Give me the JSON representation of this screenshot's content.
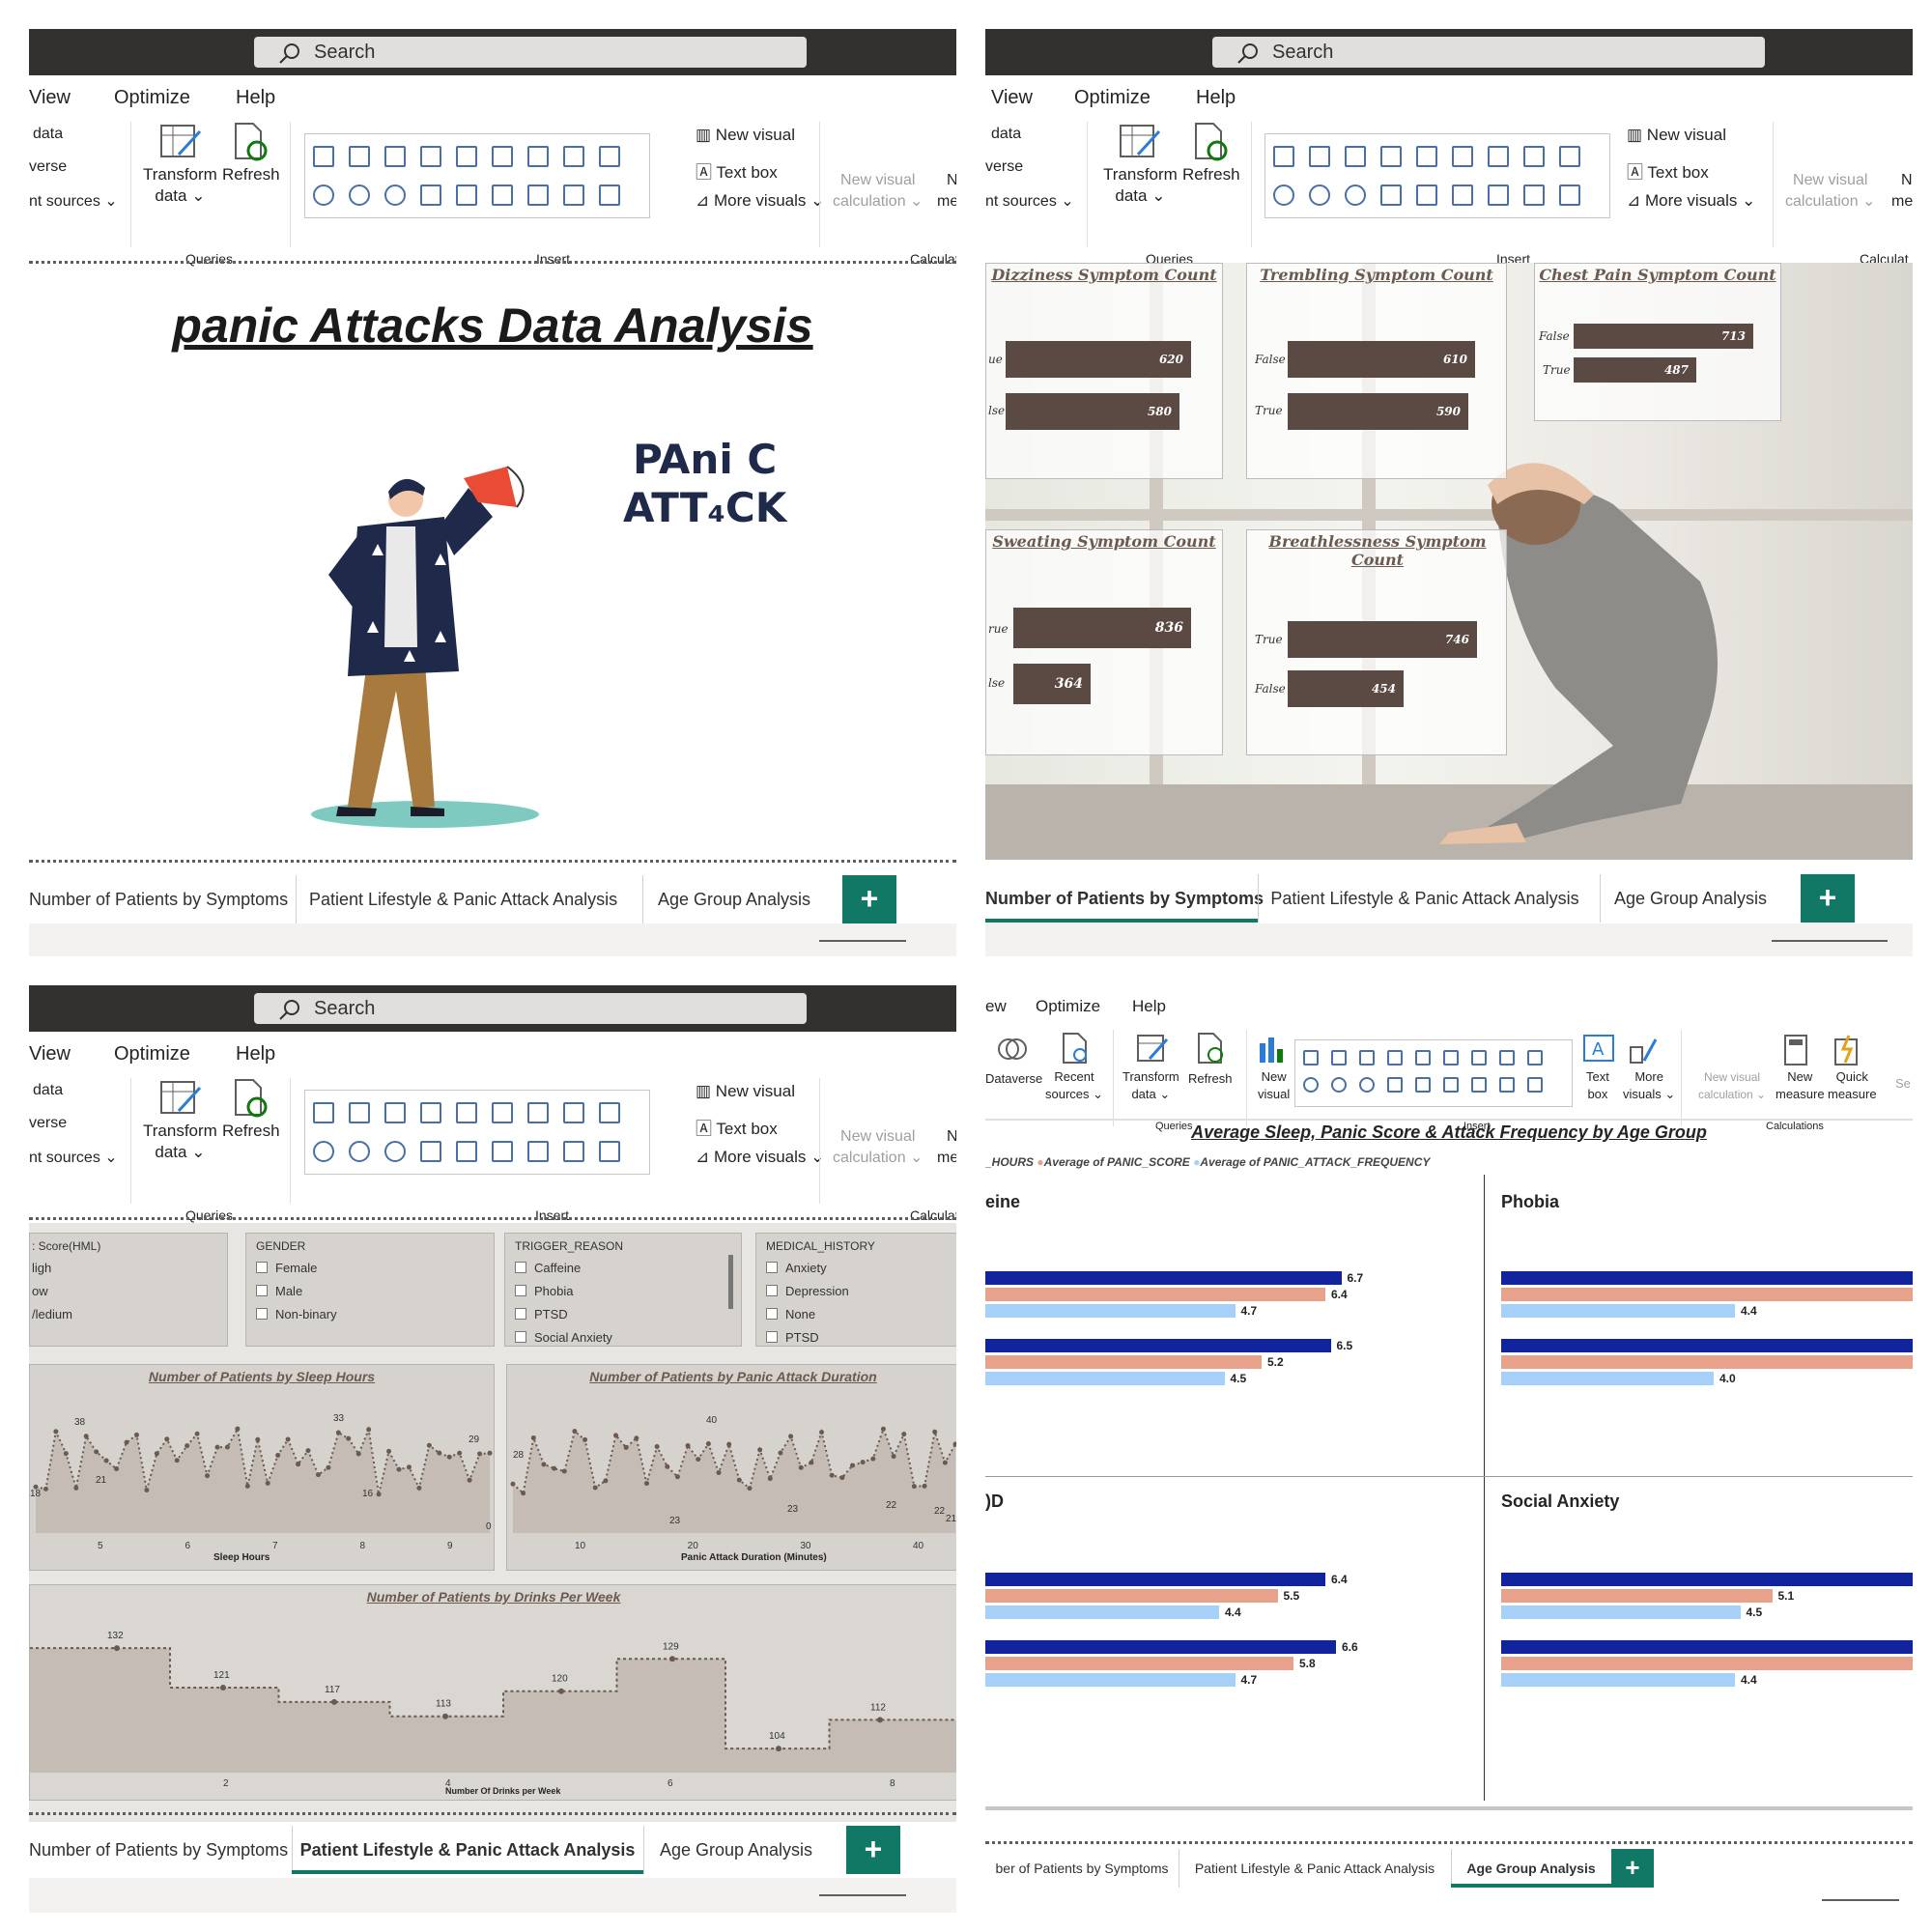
{
  "common": {
    "search": "Search",
    "menu": [
      "View",
      "Optimize",
      "Help"
    ],
    "ribbon": {
      "data": "data",
      "verse": "verse",
      "sources": "nt sources",
      "transform": "Transform",
      "transform2": "data",
      "refresh": "Refresh",
      "queries": "Queries",
      "insert": "Insert",
      "new_visual": "New visual",
      "text_box": "Text box",
      "more_visuals": "More visuals",
      "new_visual_calc": "New visual",
      "calculation": "calculation",
      "calculat": "Calculat",
      "n": "N",
      "mea": "mea"
    },
    "tabs": [
      "Number of Patients by Symptoms",
      "Patient Lifestyle & Panic Attack Analysis",
      "Age Group Analysis"
    ],
    "add_tab": "+"
  },
  "p1": {
    "title": "panic Attacks Data Analysis",
    "art_text_1": "PAni C",
    "art_text_2": "ATT₄CK"
  },
  "p2": {
    "cards": [
      {
        "title": "Dizziness Symptom Count",
        "bars": [
          {
            "label": "ue",
            "value": 620
          },
          {
            "label": "lse",
            "value": 580
          }
        ]
      },
      {
        "title": "Trembling Symptom Count",
        "bars": [
          {
            "label": "False",
            "value": 610
          },
          {
            "label": "True",
            "value": 590
          }
        ]
      },
      {
        "title": "Chest Pain Symptom Count",
        "bars": [
          {
            "label": "False",
            "value": 713
          },
          {
            "label": "True",
            "value": 487
          }
        ]
      },
      {
        "title": "Sweating Symptom Count",
        "bars": [
          {
            "label": "rue",
            "value": 836
          },
          {
            "label": "lse",
            "value": 364
          }
        ]
      },
      {
        "title": "Breathlessness Symptom Count",
        "bars": [
          {
            "label": "True",
            "value": 746
          },
          {
            "label": "False",
            "value": 454
          }
        ]
      }
    ]
  },
  "p3": {
    "slicers": [
      {
        "title": ": Score(HML)",
        "items": [
          "ligh",
          "ow",
          "/ledium"
        ]
      },
      {
        "title": "GENDER",
        "items": [
          "Female",
          "Male",
          "Non-binary"
        ]
      },
      {
        "title": "TRIGGER_REASON",
        "items": [
          "Caffeine",
          "Phobia",
          "PTSD",
          "Social Anxiety"
        ]
      },
      {
        "title": "MEDICAL_HISTORY",
        "items": [
          "Anxiety",
          "Depression",
          "None",
          "PTSD"
        ]
      }
    ],
    "sleep_chart": {
      "title": "Number of Patients by Sleep Hours",
      "xlabel": "Sleep Hours",
      "ticks": [
        "5",
        "6",
        "7",
        "8",
        "9"
      ],
      "labels": [
        "18",
        "38",
        "21",
        "33",
        "16",
        "29",
        "0"
      ]
    },
    "duration_chart": {
      "title": "Number of Patients by Panic Attack Duration",
      "xlabel": "Panic Attack Duration (Minutes)",
      "ticks": [
        "10",
        "20",
        "30",
        "40"
      ],
      "labels": [
        "28",
        "23",
        "40",
        "23",
        "22",
        "22",
        "21"
      ]
    },
    "drinks_chart": {
      "title": "Number of Patients by Drinks Per Week",
      "xlabel": "Number Of Drinks per Week",
      "ticks": [
        "2",
        "4",
        "6",
        "8"
      ],
      "labels": [
        "132",
        "121",
        "117",
        "113",
        "120",
        "129",
        "104",
        "112"
      ]
    }
  },
  "p4": {
    "menu": [
      "ew",
      "Optimize",
      "Help"
    ],
    "ribbon": {
      "dataverse": "Dataverse",
      "recent": "Recent",
      "sources": "sources",
      "transform": "Transform",
      "data": "data",
      "refresh": "Refresh",
      "queries": "Queries",
      "new": "New",
      "visual": "visual",
      "insert": "Insert",
      "text": "Text",
      "box": "box",
      "more": "More",
      "visuals": "visuals",
      "new_visual_calc": "New visual",
      "calculation": "calculation",
      "new_measure": "New",
      "measure": "measure",
      "quick": "Quick",
      "measure2": "measure",
      "calculations": "Calculations",
      "se": "Se"
    },
    "chart_title": "Average Sleep, Panic Score & Attack Frequency by Age Group",
    "legend": [
      "_HOURS",
      "Average of PANIC_SCORE",
      "Average of PANIC_ATTACK_FREQUENCY"
    ],
    "colors": {
      "sleep": "#12239e",
      "panic": "#e8a18a",
      "freq": "#a6d0f7"
    },
    "panels": [
      {
        "title": "eine",
        "groups": [
          {
            "sleep": 6.7,
            "panic": 6.4,
            "freq": 4.7
          },
          {
            "sleep": 6.5,
            "panic": 5.2,
            "freq": 4.5
          }
        ]
      },
      {
        "title": "Phobia",
        "groups": [
          {
            "sleep": null,
            "panic": null,
            "freq": 4.4
          },
          {
            "sleep": null,
            "panic": null,
            "freq": 4.0
          }
        ]
      },
      {
        "title": ")D",
        "groups": [
          {
            "sleep": 6.4,
            "panic": 5.5,
            "freq": 4.4
          },
          {
            "sleep": 6.6,
            "panic": 5.8,
            "freq": 4.7
          }
        ]
      },
      {
        "title": "Social Anxiety",
        "groups": [
          {
            "sleep": null,
            "panic": 5.1,
            "freq": 4.5
          },
          {
            "sleep": null,
            "panic": null,
            "freq": 4.4
          }
        ]
      }
    ],
    "tabs": [
      "ber of Patients by Symptoms",
      "Patient Lifestyle & Panic Attack Analysis",
      "Age Group Analysis"
    ]
  }
}
